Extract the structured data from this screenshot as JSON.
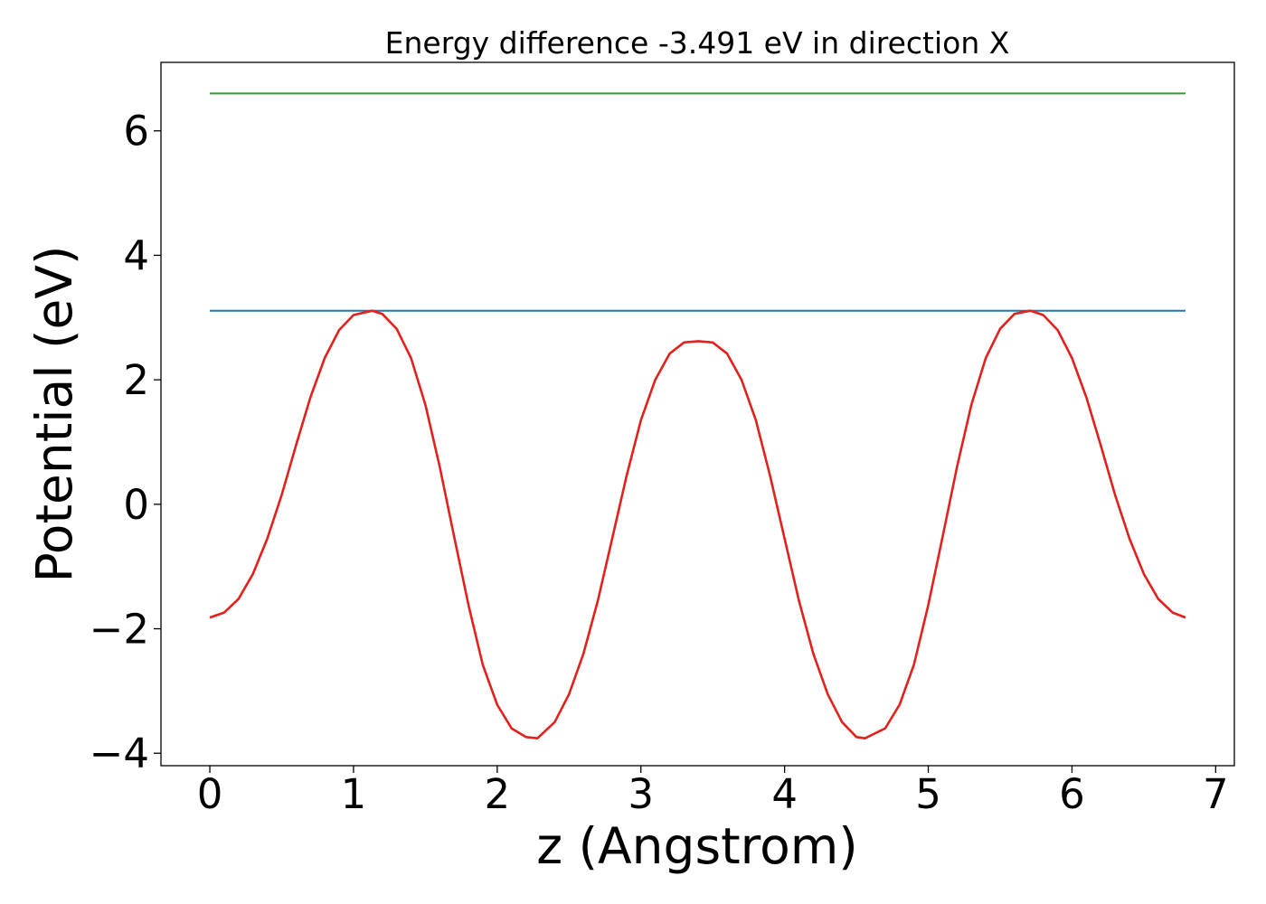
{
  "chart_data": {
    "type": "line",
    "title": "Energy difference -3.491 eV in direction X",
    "xlabel": "z (Angstrom)",
    "ylabel": "Potential (eV)",
    "xlim": [
      -0.34,
      7.13
    ],
    "ylim": [
      -4.2,
      7.1
    ],
    "xticks": [
      0,
      1,
      2,
      3,
      4,
      5,
      6,
      7
    ],
    "yticks": [
      -4,
      -2,
      0,
      2,
      4,
      6
    ],
    "xtick_labels": [
      "0",
      "1",
      "2",
      "3",
      "4",
      "5",
      "6",
      "7"
    ],
    "ytick_labels": [
      "−4",
      "−2",
      "0",
      "2",
      "4",
      "6"
    ],
    "grid": false,
    "legend": "none",
    "series": [
      {
        "color": "#2ca02c",
        "x": [
          0,
          6.79
        ],
        "values": [
          6.6,
          6.6
        ]
      },
      {
        "color": "#1f77b4",
        "x": [
          0,
          6.79
        ],
        "values": [
          3.11,
          3.11
        ]
      },
      {
        "color": "#e3211c",
        "x": [
          0.0,
          0.1,
          0.2,
          0.3,
          0.4,
          0.5,
          0.6,
          0.7,
          0.8,
          0.9,
          1.0,
          1.13,
          1.2,
          1.3,
          1.4,
          1.5,
          1.6,
          1.7,
          1.8,
          1.9,
          2.0,
          2.1,
          2.2,
          2.28,
          2.4,
          2.5,
          2.6,
          2.7,
          2.8,
          2.9,
          3.0,
          3.1,
          3.2,
          3.3,
          3.4,
          3.5,
          3.6,
          3.7,
          3.8,
          3.9,
          4.0,
          4.1,
          4.2,
          4.3,
          4.4,
          4.5,
          4.56,
          4.7,
          4.8,
          4.9,
          5.0,
          5.1,
          5.2,
          5.3,
          5.4,
          5.5,
          5.6,
          5.71,
          5.8,
          5.9,
          6.0,
          6.1,
          6.2,
          6.3,
          6.4,
          6.5,
          6.6,
          6.7,
          6.79
        ],
        "values": [
          -1.82,
          -1.74,
          -1.52,
          -1.12,
          -0.55,
          0.15,
          0.95,
          1.72,
          2.35,
          2.8,
          3.04,
          3.11,
          3.06,
          2.82,
          2.35,
          1.6,
          0.6,
          -0.52,
          -1.62,
          -2.58,
          -3.22,
          -3.6,
          -3.74,
          -3.76,
          -3.5,
          -3.05,
          -2.4,
          -1.55,
          -0.55,
          0.45,
          1.35,
          2.0,
          2.42,
          2.6,
          2.62,
          2.6,
          2.42,
          2.0,
          1.35,
          0.45,
          -0.55,
          -1.55,
          -2.4,
          -3.05,
          -3.5,
          -3.74,
          -3.76,
          -3.6,
          -3.22,
          -2.58,
          -1.62,
          -0.52,
          0.6,
          1.6,
          2.35,
          2.82,
          3.06,
          3.11,
          3.04,
          2.8,
          2.35,
          1.72,
          0.95,
          0.15,
          -0.55,
          -1.12,
          -1.52,
          -1.74,
          -1.82
        ]
      }
    ]
  }
}
